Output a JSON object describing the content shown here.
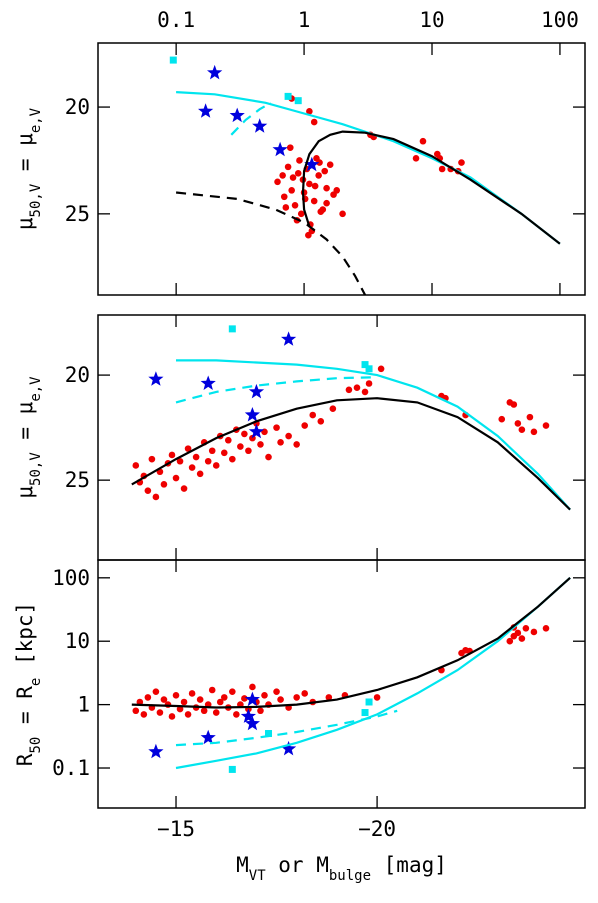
{
  "charts": [
    {
      "type": "scatter",
      "xlog": true,
      "ylog": false,
      "xlim": [
        0.0245,
        157
      ],
      "ylim": [
        28.8,
        17
      ],
      "xticks": [
        0.1,
        1,
        10,
        100
      ],
      "yticks": [
        20,
        25
      ],
      "xtick_side": "top",
      "show_xtick_labels": true,
      "ylabel": [
        "μ",
        "50,V",
        " = μ",
        "e,V"
      ],
      "series": [
        {
          "kind": "dot",
          "color": "#ee0000",
          "x": [
            0.62,
            0.7,
            0.75,
            0.8,
            0.85,
            0.9,
            0.95,
            1.0,
            1.05,
            1.1,
            1.2,
            1.3,
            1.4,
            1.5,
            1.6,
            1.7,
            0.78,
            0.88,
            0.98,
            1.15,
            1.25,
            1.35,
            1.45,
            0.72,
            0.82,
            0.92,
            1.02,
            1.12,
            1.22,
            1.32,
            1.5,
            1.8,
            2.0,
            0.68,
            1.08,
            0.8,
            0.9,
            1.1,
            1.2,
            3.3,
            3.5,
            7.5,
            8.5,
            11,
            11.5,
            12,
            14,
            16,
            17
          ],
          "values": [
            23.5,
            24.2,
            22.8,
            23.9,
            24.6,
            23.1,
            25.0,
            24.0,
            22.9,
            23.6,
            24.4,
            23.2,
            24.8,
            23.8,
            22.7,
            24.1,
            21.9,
            25.3,
            23.4,
            25.8,
            22.4,
            24.9,
            23.0,
            24.7,
            23.3,
            22.5,
            24.3,
            25.5,
            23.7,
            22.6,
            24.5,
            23.9,
            25.0,
            23.2,
            26.0,
            19.6,
            19.7,
            20.2,
            20.7,
            21.3,
            21.4,
            22.4,
            21.6,
            22.2,
            22.4,
            22.9,
            22.9,
            23.0,
            22.6
          ]
        },
        {
          "kind": "star",
          "color": "#0000dd",
          "x": [
            0.2,
            0.17,
            0.3,
            0.45,
            0.65,
            1.15
          ],
          "values": [
            18.4,
            20.2,
            20.4,
            20.9,
            22.0,
            22.7
          ]
        },
        {
          "kind": "square",
          "color": "#00e5ee",
          "x": [
            0.095,
            0.75,
            0.9
          ],
          "values": [
            17.8,
            19.5,
            19.7
          ]
        },
        {
          "kind": "line",
          "color": "#00e5ee",
          "x": [
            0.1,
            0.2,
            0.5,
            1,
            2,
            5,
            10,
            20,
            50,
            100
          ],
          "values": [
            19.3,
            19.4,
            19.8,
            20.3,
            20.8,
            21.6,
            22.4,
            23.3,
            25.0,
            26.4
          ]
        },
        {
          "kind": "dashed",
          "color": "#00e5ee",
          "x": [
            0.27,
            0.35,
            0.45,
            0.55
          ],
          "values": [
            21.3,
            20.6,
            20.1,
            19.8
          ]
        },
        {
          "kind": "line",
          "color": "#000000",
          "x": [
            1.1,
            1.0,
            0.98,
            1.0,
            1.1,
            1.3,
            1.6,
            2,
            3,
            5,
            10,
            20,
            50,
            100
          ],
          "values": [
            25.6,
            24.8,
            24.0,
            23.0,
            22.2,
            21.6,
            21.3,
            21.15,
            21.2,
            21.5,
            22.3,
            23.4,
            25.0,
            26.4
          ]
        },
        {
          "kind": "dashed",
          "color": "#000000",
          "x": [
            0.1,
            0.3,
            0.6,
            1,
            1.5,
            2,
            2.5,
            3
          ],
          "values": [
            24.0,
            24.3,
            24.8,
            25.4,
            26.2,
            27.0,
            27.9,
            28.8
          ]
        }
      ]
    },
    {
      "type": "scatter",
      "xlog": false,
      "ylog": false,
      "xlim": [
        -13.06,
        -25.17
      ],
      "ylim": [
        28.8,
        17.14
      ],
      "xticks": [
        -15,
        -20
      ],
      "yticks": [
        20,
        25
      ],
      "xtick_side": "bottom",
      "show_xtick_labels": false,
      "ylabel": [
        "μ",
        "50,V",
        " = μ",
        "e,V"
      ],
      "series": [
        {
          "kind": "dot",
          "color": "#ee0000",
          "x": [
            -14,
            -14.1,
            -14.2,
            -14.3,
            -14.4,
            -14.5,
            -14.6,
            -14.7,
            -14.8,
            -14.9,
            -15,
            -15.1,
            -15.2,
            -15.3,
            -15.4,
            -15.5,
            -15.6,
            -15.7,
            -15.8,
            -15.9,
            -16,
            -16.1,
            -16.2,
            -16.3,
            -16.4,
            -16.5,
            -16.6,
            -16.7,
            -16.8,
            -16.9,
            -17,
            -17.1,
            -17.2,
            -17.3,
            -17.5,
            -17.6,
            -17.8,
            -18,
            -18.2,
            -18.4,
            -18.6,
            -18.9,
            -19.3,
            -19.8,
            -20.1,
            -19.5,
            -19.7,
            -21.6,
            -21.7,
            -22.2,
            -23.1,
            -23.3,
            -23.5,
            -23.6,
            -23.8,
            -23.9,
            -24.2,
            -23.4
          ],
          "values": [
            24.3,
            25.1,
            24.8,
            25.5,
            24.0,
            25.8,
            24.6,
            25.2,
            24.2,
            23.8,
            24.9,
            24.1,
            25.4,
            23.5,
            24.4,
            23.9,
            24.7,
            23.2,
            24.1,
            23.6,
            24.3,
            22.9,
            23.7,
            23.1,
            24.0,
            22.6,
            23.4,
            22.8,
            23.6,
            23.0,
            22.3,
            23.3,
            22.7,
            23.9,
            22.5,
            23.2,
            22.9,
            23.3,
            22.4,
            21.9,
            22.2,
            21.6,
            20.7,
            20.4,
            19.7,
            20.6,
            20.8,
            21.0,
            21.1,
            21.9,
            22.1,
            21.3,
            22.3,
            22.6,
            22.0,
            22.7,
            22.4,
            21.4
          ]
        },
        {
          "kind": "star",
          "color": "#0000dd",
          "x": [
            -17.8,
            -14.5,
            -15.8,
            -17,
            -16.9,
            -17
          ],
          "values": [
            18.3,
            20.2,
            20.4,
            20.8,
            21.9,
            22.7
          ]
        },
        {
          "kind": "square",
          "color": "#00e5ee",
          "x": [
            -16.4,
            -19.7,
            -19.8
          ],
          "values": [
            17.8,
            19.5,
            19.7
          ]
        },
        {
          "kind": "line",
          "color": "#00e5ee",
          "x": [
            -15,
            -16,
            -17,
            -18,
            -19,
            -20,
            -21,
            -22,
            -23,
            -24,
            -24.8
          ],
          "values": [
            19.3,
            19.3,
            19.4,
            19.5,
            19.7,
            20.0,
            20.6,
            21.5,
            22.9,
            24.7,
            26.4
          ]
        },
        {
          "kind": "dashed",
          "color": "#00e5ee",
          "x": [
            -15,
            -16,
            -17,
            -18,
            -19,
            -20
          ],
          "values": [
            21.3,
            20.8,
            20.5,
            20.3,
            20.15,
            20.1
          ]
        },
        {
          "kind": "line",
          "color": "#000000",
          "x": [
            -13.9,
            -15,
            -16,
            -17,
            -18,
            -19,
            -20,
            -21,
            -22,
            -23,
            -24,
            -24.8
          ],
          "values": [
            25.2,
            24.0,
            23.0,
            22.2,
            21.6,
            21.2,
            21.1,
            21.3,
            22.0,
            23.2,
            24.9,
            26.4
          ]
        }
      ]
    },
    {
      "type": "scatter",
      "xlog": false,
      "ylog": true,
      "xlim": [
        -13.06,
        -25.17
      ],
      "ylim": [
        0.0234,
        191
      ],
      "xticks": [
        {
          "value": -15,
          "label": "−15"
        },
        {
          "value": -20,
          "label": "−20"
        }
      ],
      "yticks": [
        0.1,
        1,
        10,
        100
      ],
      "xtick_side": "bottom",
      "show_xtick_labels": true,
      "ylabel": [
        "R",
        "50",
        " = R",
        "e",
        " [kpc]"
      ],
      "xlabel": [
        "M",
        "VT",
        " or M",
        "bulge",
        " [mag]"
      ],
      "series": [
        {
          "kind": "dot",
          "color": "#ee0000",
          "x": [
            -14,
            -14.1,
            -14.2,
            -14.3,
            -14.4,
            -14.5,
            -14.6,
            -14.7,
            -14.8,
            -14.9,
            -15,
            -15.1,
            -15.2,
            -15.3,
            -15.4,
            -15.5,
            -15.6,
            -15.7,
            -15.8,
            -15.9,
            -16,
            -16.1,
            -16.2,
            -16.3,
            -16.4,
            -16.5,
            -16.6,
            -16.7,
            -16.8,
            -16.9,
            -17,
            -17.1,
            -17.2,
            -17.3,
            -17.5,
            -17.6,
            -17.8,
            -18,
            -18.2,
            -18.4,
            -18.8,
            -19.2,
            -20,
            -21.6,
            -22.1,
            -22.2,
            -22.3,
            -23.3,
            -23.4,
            -23.5,
            -23.6,
            -23.7,
            -23.9,
            -24.2,
            -23.4
          ],
          "values": [
            0.8,
            1.1,
            0.7,
            1.3,
            0.9,
            1.6,
            0.75,
            1.2,
            1.0,
            0.65,
            1.4,
            0.85,
            1.1,
            0.7,
            1.5,
            0.9,
            1.2,
            0.8,
            1.0,
            1.7,
            0.75,
            1.1,
            1.3,
            0.9,
            1.6,
            0.7,
            1.0,
            1.25,
            0.85,
            1.9,
            1.1,
            0.8,
            1.4,
            1.0,
            1.6,
            1.2,
            0.9,
            1.3,
            1.5,
            1.1,
            1.3,
            1.4,
            1.3,
            3.5,
            6.5,
            7.2,
            7.0,
            10,
            12,
            13.5,
            11,
            16,
            14,
            16,
            16.5
          ]
        },
        {
          "kind": "star",
          "color": "#0000dd",
          "x": [
            -14.5,
            -15.8,
            -17.8,
            -16.9,
            -16.8,
            -16.9
          ],
          "values": [
            0.18,
            0.3,
            0.2,
            1.2,
            0.65,
            0.5
          ]
        },
        {
          "kind": "square",
          "color": "#00e5ee",
          "x": [
            -16.4,
            -17.3,
            -19.7,
            -19.8
          ],
          "values": [
            0.095,
            0.35,
            0.75,
            1.1
          ]
        },
        {
          "kind": "line",
          "color": "#00e5ee",
          "x": [
            -15,
            -16,
            -17,
            -18,
            -19,
            -20,
            -21,
            -22,
            -23,
            -24,
            -24.8
          ],
          "values": [
            0.1,
            0.13,
            0.17,
            0.25,
            0.4,
            0.7,
            1.5,
            3.5,
            10,
            35,
            100
          ]
        },
        {
          "kind": "dashed",
          "color": "#00e5ee",
          "x": [
            -15,
            -16,
            -17,
            -18,
            -19,
            -20,
            -20.5
          ],
          "values": [
            0.23,
            0.25,
            0.3,
            0.37,
            0.48,
            0.65,
            0.8
          ]
        },
        {
          "kind": "line",
          "color": "#000000",
          "x": [
            -13.9,
            -15,
            -16,
            -17,
            -18,
            -19,
            -20,
            -21,
            -22,
            -23,
            -24,
            -24.8
          ],
          "values": [
            1.0,
            0.95,
            0.9,
            0.92,
            1.0,
            1.2,
            1.7,
            2.7,
            5,
            11,
            35,
            100
          ]
        }
      ]
    }
  ]
}
